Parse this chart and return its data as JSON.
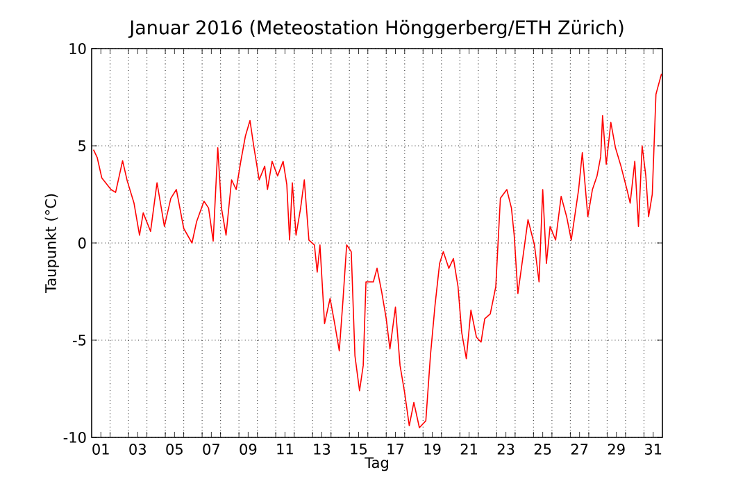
{
  "chart_data": {
    "type": "line",
    "title": "Januar 2016  (Meteostation Hönggerberg/ETH Zürich)",
    "xlabel": "Tag",
    "ylabel": "Taupunkt (°C)",
    "xlim": [
      1,
      32
    ],
    "ylim": [
      -10,
      10
    ],
    "yticks": [
      -10,
      -5,
      0,
      5,
      10
    ],
    "xticks": [
      {
        "value": 1.5,
        "label": "01"
      },
      {
        "value": 3.5,
        "label": "03"
      },
      {
        "value": 5.5,
        "label": "05"
      },
      {
        "value": 7.5,
        "label": "07"
      },
      {
        "value": 9.5,
        "label": "09"
      },
      {
        "value": 11.5,
        "label": "11"
      },
      {
        "value": 13.5,
        "label": "13"
      },
      {
        "value": 15.5,
        "label": "15"
      },
      {
        "value": 17.5,
        "label": "17"
      },
      {
        "value": 19.5,
        "label": "19"
      },
      {
        "value": 21.5,
        "label": "21"
      },
      {
        "value": 23.5,
        "label": "23"
      },
      {
        "value": 25.5,
        "label": "25"
      },
      {
        "value": 27.5,
        "label": "27"
      },
      {
        "value": 29.5,
        "label": "29"
      },
      {
        "value": 31.5,
        "label": "31"
      },
      {
        "value": 2,
        "label": null
      },
      {
        "value": 3,
        "label": null
      },
      {
        "value": 4,
        "label": null
      },
      {
        "value": 5,
        "label": null
      },
      {
        "value": 6,
        "label": null
      },
      {
        "value": 7,
        "label": null
      },
      {
        "value": 8,
        "label": null
      },
      {
        "value": 9,
        "label": null
      },
      {
        "value": 10,
        "label": null
      },
      {
        "value": 11,
        "label": null
      },
      {
        "value": 12,
        "label": null
      },
      {
        "value": 13,
        "label": null
      },
      {
        "value": 14,
        "label": null
      },
      {
        "value": 15,
        "label": null
      },
      {
        "value": 16,
        "label": null
      },
      {
        "value": 17,
        "label": null
      },
      {
        "value": 18,
        "label": null
      },
      {
        "value": 19,
        "label": null
      },
      {
        "value": 20,
        "label": null
      },
      {
        "value": 21,
        "label": null
      },
      {
        "value": 22,
        "label": null
      },
      {
        "value": 23,
        "label": null
      },
      {
        "value": 24,
        "label": null
      },
      {
        "value": 25,
        "label": null
      },
      {
        "value": 26,
        "label": null
      },
      {
        "value": 27,
        "label": null
      },
      {
        "value": 28,
        "label": null
      },
      {
        "value": 29,
        "label": null
      },
      {
        "value": 30,
        "label": null
      },
      {
        "value": 31,
        "label": null
      }
    ],
    "grid": true,
    "line_style": "solid",
    "series": [
      {
        "color": "#ff0000",
        "x": [
          1.1,
          1.3,
          1.55,
          2.05,
          2.3,
          2.68,
          2.93,
          3.3,
          3.6,
          3.8,
          4.2,
          4.55,
          4.95,
          5.3,
          5.6,
          6.0,
          6.45,
          6.7,
          7.1,
          7.35,
          7.6,
          7.85,
          8.05,
          8.3,
          8.6,
          8.85,
          9.1,
          9.35,
          9.6,
          9.8,
          10.1,
          10.4,
          10.55,
          10.8,
          11.1,
          11.4,
          11.6,
          11.75,
          11.9,
          12.1,
          12.35,
          12.55,
          12.8,
          13.1,
          13.25,
          13.4,
          13.65,
          13.95,
          14.2,
          14.45,
          14.65,
          14.85,
          15.1,
          15.3,
          15.55,
          15.75,
          15.9,
          16.3,
          16.5,
          16.75,
          17.0,
          17.2,
          17.5,
          17.75,
          18.0,
          18.25,
          18.5,
          18.8,
          19.15,
          19.4,
          19.65,
          19.9,
          20.1,
          20.4,
          20.65,
          20.9,
          21.1,
          21.35,
          21.6,
          21.9,
          22.15,
          22.35,
          22.65,
          22.95,
          23.2,
          23.55,
          23.8,
          23.95,
          24.15,
          24.45,
          24.7,
          25.05,
          25.3,
          25.5,
          25.7,
          25.9,
          26.2,
          26.5,
          26.8,
          27.05,
          27.45,
          27.65,
          27.95,
          28.2,
          28.45,
          28.65,
          28.75,
          28.95,
          29.2,
          29.45,
          29.75,
          30.1,
          30.25,
          30.5,
          30.7,
          30.9,
          31.1,
          31.25,
          31.45,
          31.65,
          31.95
        ],
        "values": [
          4.8,
          4.4,
          3.35,
          2.75,
          2.6,
          4.23,
          3.2,
          2.05,
          0.4,
          1.55,
          0.6,
          3.1,
          0.85,
          2.3,
          2.75,
          0.75,
          0.0,
          1.1,
          2.15,
          1.8,
          0.1,
          4.9,
          1.8,
          0.4,
          3.25,
          2.75,
          4.2,
          5.5,
          6.3,
          5.0,
          3.25,
          3.95,
          2.75,
          4.2,
          3.45,
          4.2,
          3.0,
          0.15,
          3.1,
          0.4,
          1.8,
          3.25,
          0.15,
          -0.1,
          -1.5,
          -0.1,
          -4.15,
          -2.85,
          -4.15,
          -5.55,
          -2.95,
          -0.1,
          -0.45,
          -5.8,
          -7.6,
          -6.3,
          -2.0,
          -2.0,
          -1.3,
          -2.5,
          -3.9,
          -5.45,
          -3.3,
          -6.3,
          -7.7,
          -9.4,
          -8.2,
          -9.5,
          -9.15,
          -5.8,
          -3.2,
          -1.05,
          -0.45,
          -1.3,
          -0.8,
          -2.25,
          -4.6,
          -5.95,
          -3.45,
          -4.85,
          -5.1,
          -3.9,
          -3.65,
          -2.25,
          2.3,
          2.75,
          1.8,
          0.4,
          -2.6,
          -0.55,
          1.2,
          -0.1,
          -2.0,
          2.75,
          -1.05,
          0.85,
          0.15,
          2.4,
          1.35,
          0.15,
          2.75,
          4.65,
          1.35,
          2.75,
          3.45,
          4.45,
          6.55,
          4.05,
          6.2,
          4.9,
          3.95,
          2.65,
          2.05,
          4.2,
          0.85,
          5.0,
          3.45,
          1.35,
          2.5,
          7.65,
          8.7
        ]
      }
    ]
  }
}
